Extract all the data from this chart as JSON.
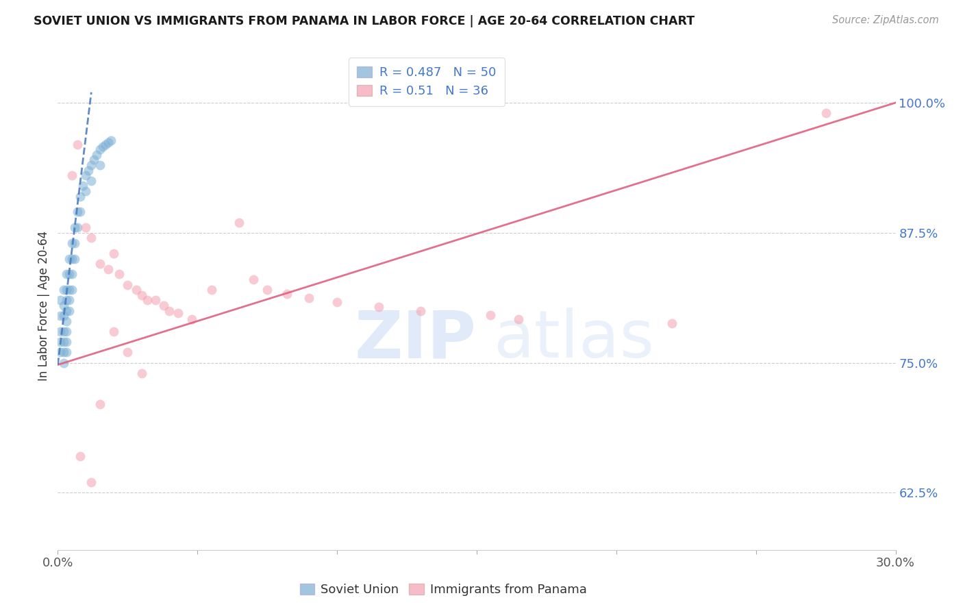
{
  "title": "SOVIET UNION VS IMMIGRANTS FROM PANAMA IN LABOR FORCE | AGE 20-64 CORRELATION CHART",
  "source": "Source: ZipAtlas.com",
  "ylabel": "In Labor Force | Age 20-64",
  "xmin": 0.0,
  "xmax": 0.3,
  "ymin": 0.57,
  "ymax": 1.04,
  "yticks": [
    0.625,
    0.75,
    0.875,
    1.0
  ],
  "ytick_labels": [
    "62.5%",
    "75.0%",
    "87.5%",
    "100.0%"
  ],
  "xticks": [
    0.0,
    0.05,
    0.1,
    0.15,
    0.2,
    0.25,
    0.3
  ],
  "xtick_labels": [
    "0.0%",
    "",
    "",
    "",
    "",
    "",
    "30.0%"
  ],
  "blue_color": "#7BAFD4",
  "pink_color": "#F4A0B0",
  "blue_line_color": "#4477BB",
  "pink_line_color": "#E06080",
  "blue_label": "Soviet Union",
  "pink_label": "Immigrants from Panama",
  "blue_R": 0.487,
  "blue_N": 50,
  "pink_R": 0.51,
  "pink_N": 36,
  "blue_x": [
    0.001,
    0.001,
    0.001,
    0.001,
    0.001,
    0.002,
    0.002,
    0.002,
    0.002,
    0.002,
    0.002,
    0.002,
    0.003,
    0.003,
    0.003,
    0.003,
    0.003,
    0.003,
    0.003,
    0.003,
    0.004,
    0.004,
    0.004,
    0.004,
    0.004,
    0.005,
    0.005,
    0.005,
    0.005,
    0.006,
    0.006,
    0.006,
    0.007,
    0.007,
    0.008,
    0.008,
    0.009,
    0.01,
    0.01,
    0.011,
    0.012,
    0.012,
    0.013,
    0.014,
    0.015,
    0.015,
    0.016,
    0.017,
    0.018,
    0.019
  ],
  "blue_y": [
    0.81,
    0.795,
    0.78,
    0.77,
    0.76,
    0.82,
    0.805,
    0.795,
    0.78,
    0.77,
    0.76,
    0.75,
    0.835,
    0.82,
    0.81,
    0.8,
    0.79,
    0.78,
    0.77,
    0.76,
    0.85,
    0.835,
    0.82,
    0.81,
    0.8,
    0.865,
    0.85,
    0.835,
    0.82,
    0.88,
    0.865,
    0.85,
    0.895,
    0.88,
    0.91,
    0.895,
    0.92,
    0.93,
    0.915,
    0.935,
    0.94,
    0.925,
    0.945,
    0.95,
    0.955,
    0.94,
    0.958,
    0.96,
    0.962,
    0.964
  ],
  "pink_x": [
    0.005,
    0.007,
    0.01,
    0.012,
    0.015,
    0.018,
    0.02,
    0.022,
    0.025,
    0.028,
    0.03,
    0.032,
    0.035,
    0.038,
    0.04,
    0.043,
    0.048,
    0.055,
    0.065,
    0.07,
    0.075,
    0.082,
    0.09,
    0.1,
    0.115,
    0.13,
    0.155,
    0.165,
    0.22,
    0.275,
    0.015,
    0.02,
    0.025,
    0.03,
    0.008,
    0.012
  ],
  "pink_y": [
    0.93,
    0.96,
    0.88,
    0.87,
    0.845,
    0.84,
    0.855,
    0.835,
    0.825,
    0.82,
    0.815,
    0.81,
    0.81,
    0.805,
    0.8,
    0.798,
    0.792,
    0.82,
    0.885,
    0.83,
    0.82,
    0.816,
    0.812,
    0.808,
    0.804,
    0.8,
    0.796,
    0.792,
    0.788,
    0.99,
    0.71,
    0.78,
    0.76,
    0.74,
    0.66,
    0.635
  ]
}
